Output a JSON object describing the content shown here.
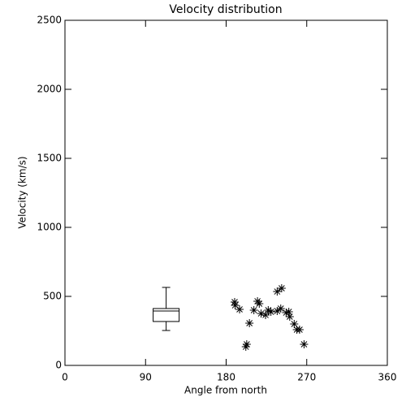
{
  "chart_data": {
    "type": "scatter",
    "title": "Velocity distribution",
    "x_label": "Angle from north",
    "y_label": "Velocity (km/s)",
    "xlim": [
      0,
      360
    ],
    "xticks": [
      0,
      90,
      180,
      270,
      360
    ],
    "ylim": [
      0,
      2500
    ],
    "yticks": [
      0,
      500,
      1000,
      1500,
      2000,
      2500
    ],
    "color": "#000000",
    "x": [
      189.5,
      190,
      195,
      202,
      203,
      206,
      211,
      215,
      217,
      219,
      224,
      227,
      230,
      237,
      237,
      241,
      242,
      247,
      250,
      251,
      256,
      259,
      262,
      267
    ],
    "values": [
      459,
      435,
      406,
      135,
      153,
      306,
      400,
      465,
      447,
      376,
      365,
      400,
      388,
      535,
      394,
      412,
      559,
      382,
      388,
      353,
      300,
      259,
      259,
      153
    ],
    "box": {
      "x": 113,
      "whislo": 253,
      "q1": 318,
      "med": 394,
      "q3": 412,
      "whishi": 565
    }
  }
}
